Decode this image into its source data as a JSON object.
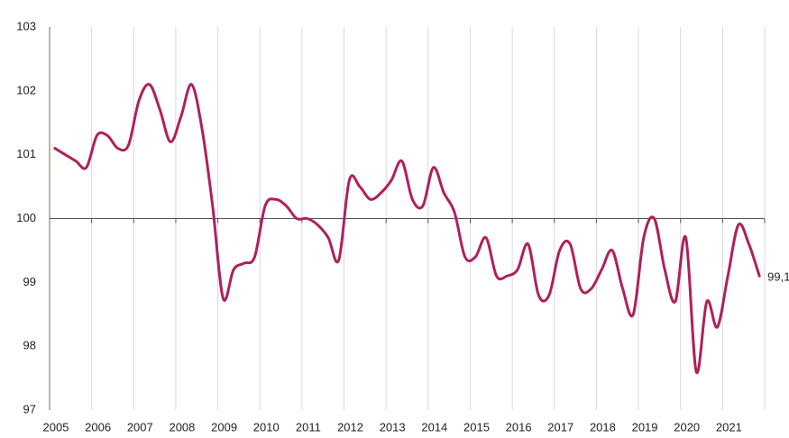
{
  "chart_data": {
    "type": "line",
    "xlim": [
      2005,
      2022
    ],
    "xticks": [
      2005,
      2006,
      2007,
      2008,
      2009,
      2010,
      2011,
      2012,
      2013,
      2014,
      2015,
      2016,
      2017,
      2018,
      2019,
      2020,
      2021
    ],
    "ylim": [
      97,
      103
    ],
    "yticks": [
      97,
      98,
      99,
      100,
      101,
      102,
      103
    ],
    "baseline": 100,
    "grid": true,
    "series": [
      {
        "color": "#b0205a",
        "values": [
          101.1,
          101.0,
          100.9,
          100.8,
          101.3,
          101.3,
          101.1,
          101.15,
          101.85,
          102.1,
          101.7,
          101.2,
          101.6,
          102.1,
          101.4,
          100.2,
          98.75,
          99.2,
          99.3,
          99.4,
          100.2,
          100.3,
          100.2,
          100.0,
          100.0,
          99.9,
          99.7,
          99.35,
          100.6,
          100.5,
          100.3,
          100.4,
          100.6,
          100.9,
          100.3,
          100.2,
          100.8,
          100.4,
          100.1,
          99.4,
          99.4,
          99.7,
          99.1,
          99.1,
          99.2,
          99.6,
          98.8,
          98.8,
          99.5,
          99.6,
          98.9,
          98.9,
          99.2,
          99.5,
          98.9,
          98.5,
          99.7,
          100.0,
          99.2,
          98.7,
          99.7,
          97.6,
          98.7,
          98.3,
          99.1,
          99.9,
          99.6,
          99.1
        ],
        "last_label": "99,1"
      }
    ]
  }
}
